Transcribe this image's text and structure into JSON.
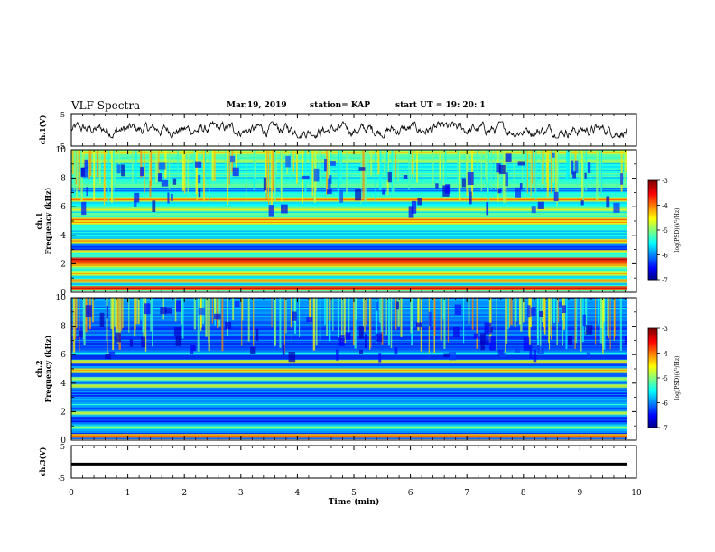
{
  "header": {
    "title": "VLF Spectra",
    "date": "Mar.19, 2019",
    "station": "station= KAP",
    "start": "start  UT =   19: 20: 1"
  },
  "chart_data": [
    {
      "type": "line",
      "panel": "ch1-waveform",
      "ylabel": "ch.1(V)",
      "yticks": [
        "5",
        "-5"
      ],
      "ylim": [
        -5,
        5
      ],
      "xlim": [
        0,
        10
      ],
      "x_end": 9.83,
      "series": [
        {
          "description": "noisy waveform",
          "mean": 0,
          "amplitude_range": [
            -2.5,
            2.5
          ]
        }
      ]
    },
    {
      "type": "heatmap",
      "panel": "ch1-spectrogram",
      "ylabel": "Frequency (kHz)",
      "channel_label": "ch.1",
      "yticks": [
        "0",
        "2",
        "4",
        "6",
        "8",
        "10"
      ],
      "ylim": [
        0,
        10
      ],
      "xlim": [
        0,
        10
      ],
      "colorbar": {
        "label": "log(PSD)(V²/Hz)",
        "ticks": [
          "-3",
          "-4",
          "-5",
          "-6",
          "-7"
        ],
        "range": [
          -7,
          -3
        ]
      },
      "background_level": -5.4,
      "bands": [
        {
          "f": 0.3,
          "level": -3.8
        },
        {
          "f": 0.8,
          "level": -4.2
        },
        {
          "f": 1.3,
          "level": -4.6
        },
        {
          "f": 1.9,
          "level": -4.4
        },
        {
          "f": 2.1,
          "level": -3.9
        },
        {
          "f": 2.3,
          "level": -3.6
        },
        {
          "f": 2.9,
          "level": -4.8
        },
        {
          "f": 3.1,
          "level": -6.5
        },
        {
          "f": 3.3,
          "level": -6.3
        },
        {
          "f": 3.6,
          "level": -4.4
        },
        {
          "f": 4.2,
          "level": -5.8
        },
        {
          "f": 4.9,
          "level": -4.5
        },
        {
          "f": 5.1,
          "level": -4.3
        },
        {
          "f": 5.8,
          "level": -4.9
        },
        {
          "f": 6.5,
          "level": -4.3
        },
        {
          "f": 7.2,
          "level": -6.2
        },
        {
          "f": 8.3,
          "level": -5.4
        },
        {
          "f": 9.2,
          "level": -4.9
        },
        {
          "f": 9.8,
          "level": -4.7
        }
      ]
    },
    {
      "type": "heatmap",
      "panel": "ch2-spectrogram",
      "ylabel": "Frequency (kHz)",
      "channel_label": "ch.2",
      "yticks": [
        "0",
        "2",
        "4",
        "6",
        "8",
        "10"
      ],
      "ylim": [
        0,
        10
      ],
      "xlim": [
        0,
        10
      ],
      "colorbar": {
        "label": "log(PSD)(V²/Hz)",
        "ticks": [
          "-3",
          "-4",
          "-5",
          "-6",
          "-7"
        ],
        "range": [
          -7,
          -3
        ]
      },
      "background_level": -6.1,
      "bands": [
        {
          "f": 0.3,
          "level": -4.3
        },
        {
          "f": 0.9,
          "level": -5.3
        },
        {
          "f": 1.4,
          "level": -6.5
        },
        {
          "f": 1.9,
          "level": -5.0
        },
        {
          "f": 2.5,
          "level": -5.8
        },
        {
          "f": 3.2,
          "level": -6.4
        },
        {
          "f": 3.8,
          "level": -4.9
        },
        {
          "f": 4.3,
          "level": -5.1
        },
        {
          "f": 4.9,
          "level": -4.6
        },
        {
          "f": 5.5,
          "level": -4.8
        },
        {
          "f": 6.1,
          "level": -5.9
        },
        {
          "f": 7.0,
          "level": -6.3
        },
        {
          "f": 8.1,
          "level": -6.2
        },
        {
          "f": 9.2,
          "level": -6.0
        }
      ]
    },
    {
      "type": "line",
      "panel": "ch3-waveform",
      "ylabel": "ch.3(V)",
      "yticks": [
        "5",
        "-5"
      ],
      "ylim": [
        -5,
        5
      ],
      "xlim": [
        0,
        10
      ],
      "x_end": 9.83,
      "series": [
        {
          "description": "flat signal",
          "value": -0.8
        }
      ]
    }
  ],
  "xaxis": {
    "label": "Time  (min)",
    "ticks": [
      "0",
      "1",
      "2",
      "3",
      "4",
      "5",
      "6",
      "7",
      "8",
      "9",
      "10"
    ]
  }
}
